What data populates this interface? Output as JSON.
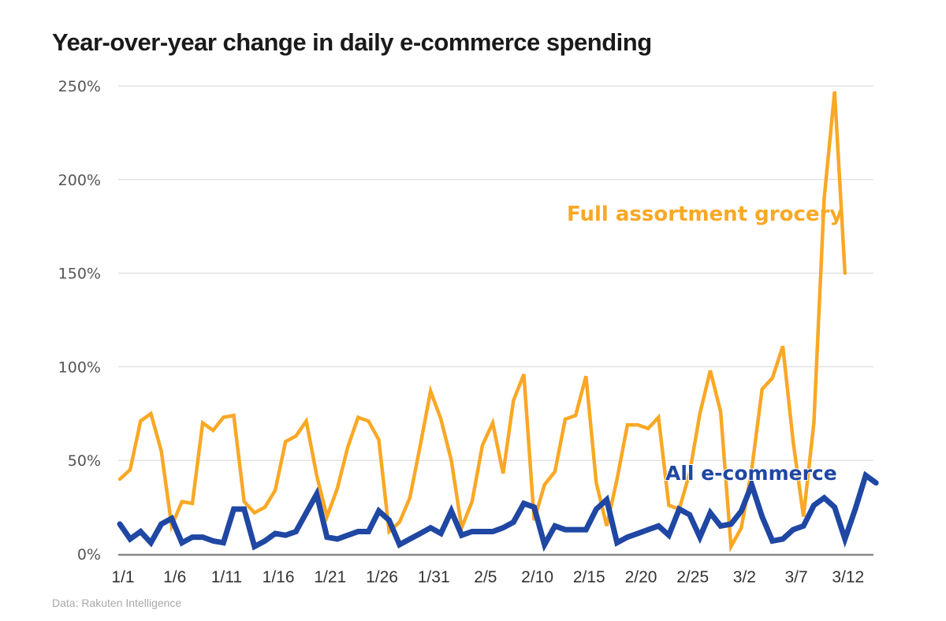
{
  "chart_data": {
    "type": "line",
    "title": "Year-over-year change in daily e-commerce spending",
    "source": "Data: Rakuten Intelligence",
    "xlabel": "",
    "ylabel": "",
    "ylim": [
      0,
      250
    ],
    "grid": true,
    "yticks": [
      0,
      50,
      100,
      150,
      200,
      250
    ],
    "ytick_labels": [
      "0%",
      "50%",
      "100%",
      "150%",
      "200%",
      "250%"
    ],
    "xtick_labels": [
      "1/1",
      "1/6",
      "1/11",
      "1/16",
      "1/21",
      "1/26",
      "1/31",
      "2/5",
      "2/10",
      "2/15",
      "2/20",
      "2/25",
      "3/2",
      "3/7",
      "3/12"
    ],
    "xtick_day_index": [
      0,
      5,
      10,
      15,
      20,
      25,
      30,
      35,
      40,
      45,
      50,
      55,
      60,
      65,
      70
    ],
    "x_start": "1/1",
    "x_unit": "day",
    "series": [
      {
        "name": "Full assortment grocery",
        "color": "#f9a825",
        "label": "Full assortment grocery",
        "values": [
          40,
          45,
          71,
          75,
          55,
          15,
          28,
          27,
          70,
          66,
          73,
          74,
          28,
          22,
          25,
          34,
          60,
          63,
          71,
          42,
          20,
          35,
          57,
          73,
          71,
          61,
          12,
          17,
          30,
          58,
          87,
          72,
          50,
          14,
          28,
          58,
          70,
          43,
          82,
          96,
          18,
          37,
          44,
          72,
          74,
          95,
          38,
          15,
          40,
          69,
          69,
          67,
          73,
          26,
          24,
          43,
          75,
          98,
          76,
          4,
          14,
          45,
          88,
          94,
          111,
          60,
          20,
          70,
          190,
          247,
          150
        ]
      },
      {
        "name": "All e-commerce",
        "color": "#1f47a3",
        "label": "All e-commerce",
        "values": [
          16,
          8,
          12,
          6,
          16,
          19,
          6,
          9,
          9,
          7,
          6,
          24,
          24,
          4,
          7,
          11,
          10,
          12,
          22,
          32,
          9,
          8,
          10,
          12,
          12,
          23,
          18,
          5,
          8,
          11,
          14,
          11,
          23,
          10,
          12,
          12,
          12,
          14,
          17,
          27,
          25,
          5,
          15,
          13,
          13,
          13,
          24,
          29,
          6,
          9,
          11,
          13,
          15,
          10,
          24,
          21,
          9,
          22,
          15,
          16,
          23,
          37,
          20,
          7,
          8,
          13,
          15,
          26,
          30,
          25,
          8,
          24,
          42,
          38
        ]
      }
    ]
  }
}
